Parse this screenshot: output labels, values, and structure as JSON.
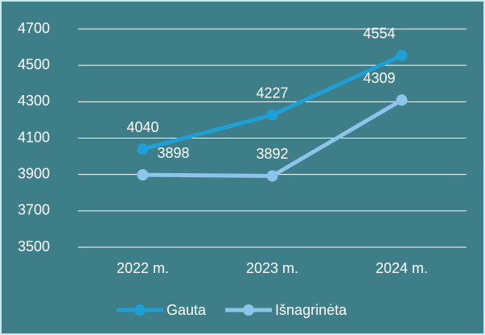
{
  "chart_data": {
    "type": "line",
    "categories": [
      "2022 m.",
      "2023 m.",
      "2024 m."
    ],
    "series": [
      {
        "name": "Gauta",
        "color": "#1e9fd6",
        "values": [
          4040,
          4227,
          4554
        ]
      },
      {
        "name": "Išnagrinėta",
        "color": "#8ec3ea",
        "values": [
          3898,
          3892,
          4309
        ]
      }
    ],
    "ylim": [
      3500,
      4700
    ],
    "yticks": [
      3500,
      3700,
      3900,
      4100,
      4300,
      4500,
      4700
    ],
    "grid": true,
    "legend": "bottom",
    "data_labels": true
  }
}
